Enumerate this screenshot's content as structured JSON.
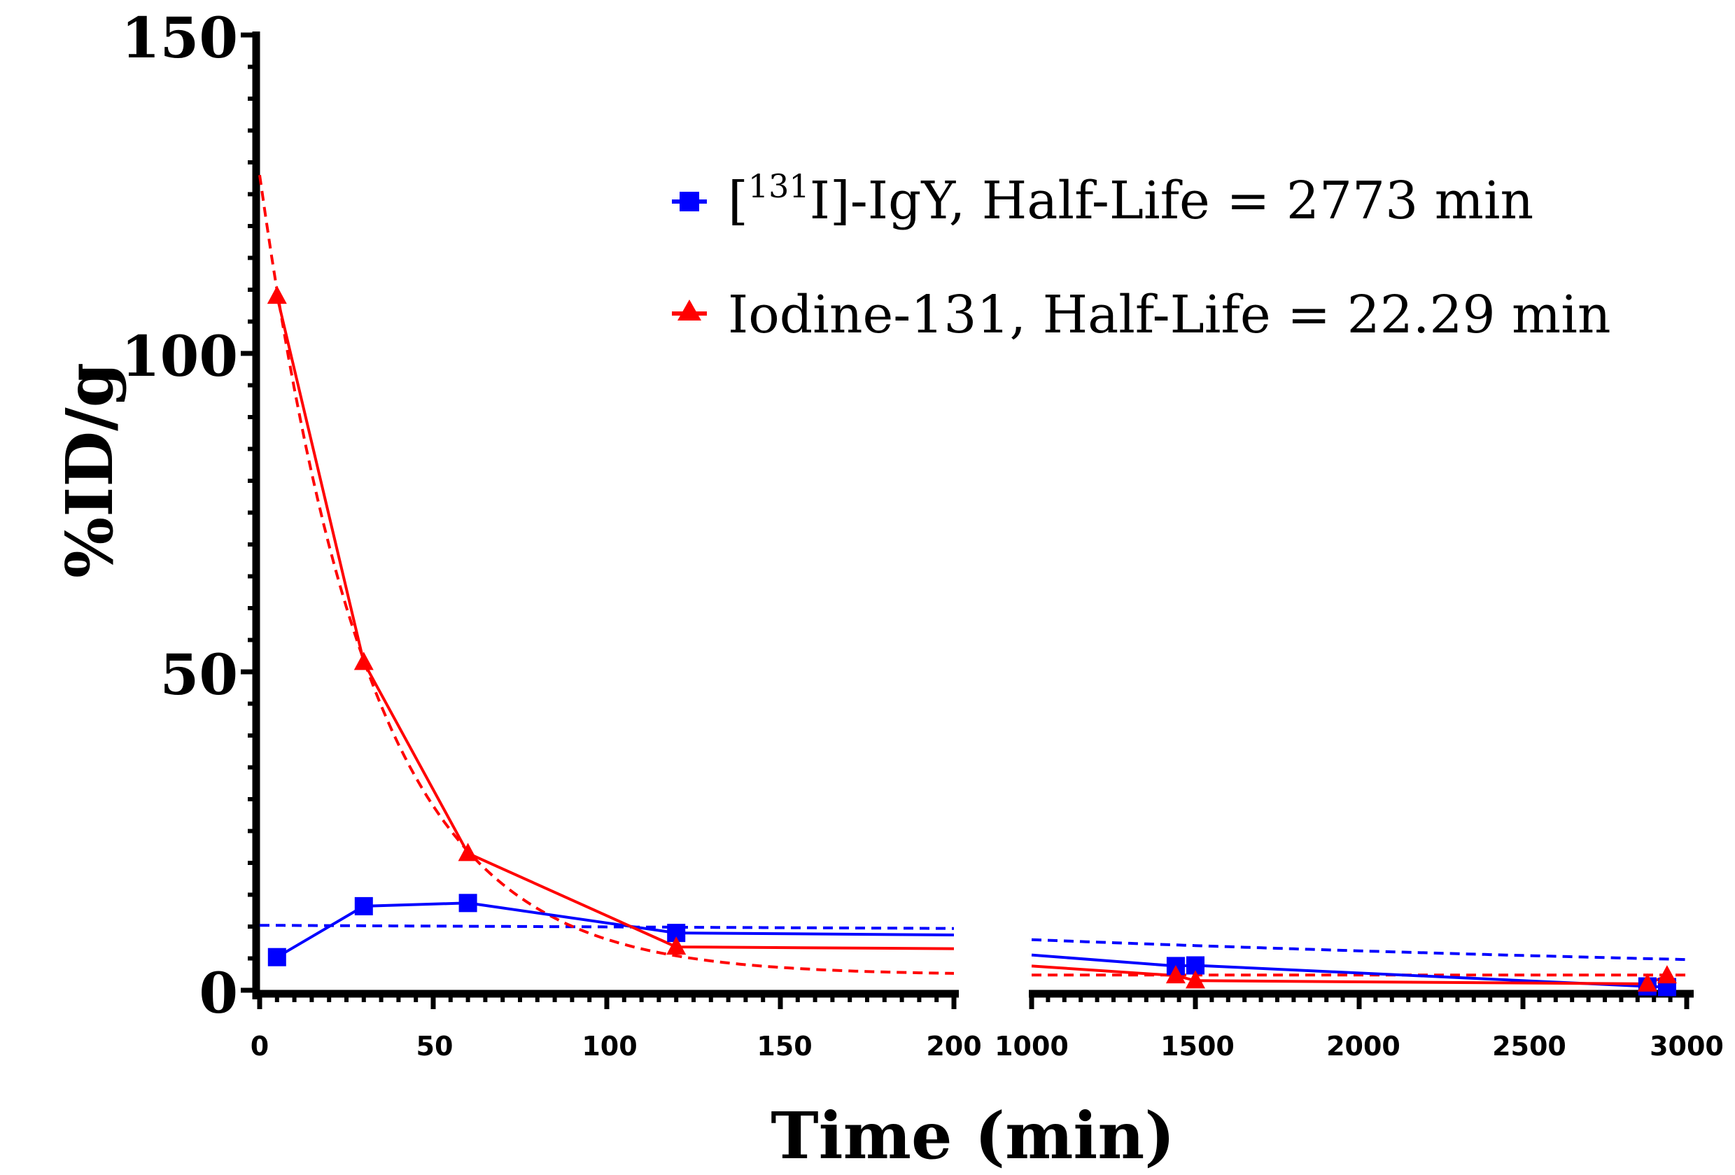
{
  "chart_data": {
    "type": "line",
    "title": "",
    "xlabel": "Time (min)",
    "ylabel": "%ID/g",
    "ylim": [
      0,
      150
    ],
    "y_ticks": [
      "0",
      "50",
      "100",
      "150"
    ],
    "x_segments": [
      {
        "range": [
          0,
          200
        ],
        "ticks": [
          "0",
          "50",
          "100",
          "150",
          "200"
        ]
      },
      {
        "range": [
          1000,
          3000
        ],
        "ticks": [
          "1000",
          "1500",
          "2000",
          "2500",
          "3000"
        ]
      }
    ],
    "series": [
      {
        "name": "IgY",
        "legend_prefix": "[",
        "legend_superscript": "131",
        "legend_suffix": "I]-IgY, Half-Life = 2773  min",
        "color": "#0000ff",
        "marker": "square",
        "points": [
          [
            5,
            5.2
          ],
          [
            30,
            13.2
          ],
          [
            60,
            13.7
          ],
          [
            120,
            9.0
          ],
          [
            1440,
            3.8
          ],
          [
            1500,
            3.9
          ],
          [
            2880,
            0.6
          ],
          [
            2940,
            0.5
          ]
        ],
        "fit_initial": 10.2,
        "fit_plateau": 0,
        "fit_half_life": 2773
      },
      {
        "name": "Iodine-131",
        "legend_label": "Iodine-131, Half-Life = 22.29 min",
        "color": "#ff0000",
        "marker": "triangle",
        "points": [
          [
            5,
            109
          ],
          [
            30,
            51.5
          ],
          [
            60,
            21.5
          ],
          [
            120,
            6.8
          ],
          [
            1440,
            2.3
          ],
          [
            1500,
            1.5
          ],
          [
            2880,
            1.0
          ],
          [
            2940,
            2.3
          ]
        ],
        "fit_initial": 128,
        "fit_plateau": 2.4,
        "fit_half_life": 22.29
      }
    ]
  }
}
